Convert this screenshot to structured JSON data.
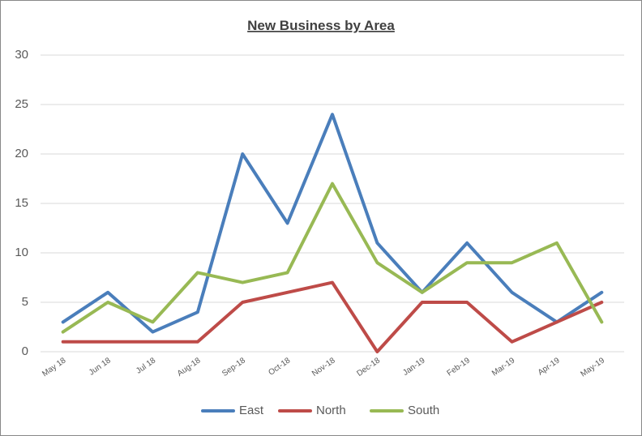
{
  "chart_data": {
    "type": "line",
    "title": "New Business by Area",
    "categories": [
      "May 18",
      "Jun 18",
      "Jul 18",
      "Aug-18",
      "Sep-18",
      "Oct-18",
      "Nov-18",
      "Dec-18",
      "Jan-19",
      "Feb-19",
      "Mar-19",
      "Apr-19",
      "May-19"
    ],
    "series": [
      {
        "name": "East",
        "color": "#4a7ebb",
        "values": [
          3,
          6,
          2,
          4,
          20,
          13,
          24,
          11,
          6,
          11,
          6,
          3,
          6
        ]
      },
      {
        "name": "North",
        "color": "#be4b48",
        "values": [
          1,
          1,
          1,
          1,
          5,
          6,
          7,
          0,
          5,
          5,
          1,
          3,
          5
        ]
      },
      {
        "name": "South",
        "color": "#98b954",
        "values": [
          2,
          5,
          3,
          8,
          7,
          8,
          17,
          9,
          6,
          9,
          9,
          11,
          3
        ]
      }
    ],
    "ylim": [
      0,
      30
    ],
    "yticks": [
      0,
      5,
      10,
      15,
      20,
      25,
      30
    ],
    "grid": true,
    "legend": "bottom"
  }
}
